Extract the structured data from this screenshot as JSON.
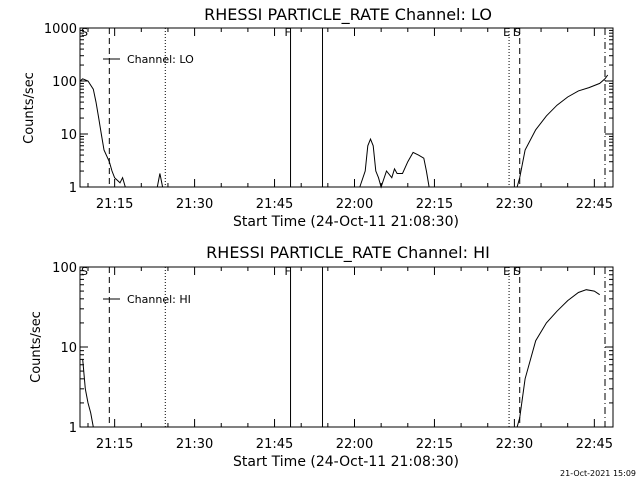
{
  "chart_data": [
    {
      "type": "line",
      "title": "RHESSI PARTICLE_RATE Channel: LO",
      "xlabel": "Start Time (24-Oct-11 21:08:30)",
      "ylabel": "Counts/sec",
      "yscale": "log",
      "ylim": [
        1,
        1000
      ],
      "xlim": [
        "21:08:30",
        "22:48:30"
      ],
      "x_ticks": [
        "21:15",
        "21:30",
        "21:45",
        "22:00",
        "22:15",
        "22:30",
        "22:45"
      ],
      "y_ticks": [
        "1",
        "10",
        "100",
        "1000"
      ],
      "legend": {
        "entries": [
          "Channel: LO"
        ],
        "placement": "top-left"
      },
      "markers": [
        {
          "label": "S",
          "time": "21:08:30",
          "style": "solid"
        },
        {
          "label": "",
          "time": "21:14:00",
          "style": "dashed"
        },
        {
          "label": "",
          "time": "21:24:30",
          "style": "dotted"
        },
        {
          "label": "F",
          "time": "21:48:00",
          "style": "solid"
        },
        {
          "label": "",
          "time": "21:54:00",
          "style": "solid"
        },
        {
          "label": "E",
          "time": "22:29:00",
          "style": "dotted"
        },
        {
          "label": "S",
          "time": "22:31:00",
          "style": "dashed"
        },
        {
          "label": "",
          "time": "22:47:00",
          "style": "dashdot"
        }
      ],
      "series": [
        {
          "segments": [
            [
              [
                "21:08:30",
                100
              ],
              [
                "21:09:00",
                110
              ],
              [
                "21:10:00",
                100
              ],
              [
                "21:11:00",
                70
              ],
              [
                "21:11:30",
                40
              ],
              [
                "21:12:00",
                20
              ],
              [
                "21:12:30",
                10
              ],
              [
                "21:13:00",
                5
              ],
              [
                "21:14:00",
                3
              ],
              [
                "21:14:30",
                2
              ],
              [
                "21:15:00",
                1.5
              ],
              [
                "21:16:00",
                1.2
              ],
              [
                "21:16:30",
                1.5
              ],
              [
                "21:17:00",
                1
              ]
            ],
            [
              [
                "21:23:00",
                1
              ],
              [
                "21:23:30",
                1.8
              ],
              [
                "21:24:00",
                1
              ]
            ],
            [
              [
                "22:01:00",
                1
              ],
              [
                "22:02:00",
                2
              ],
              [
                "22:02:30",
                6
              ],
              [
                "22:03:00",
                8
              ],
              [
                "22:03:30",
                6
              ],
              [
                "22:04:00",
                2
              ],
              [
                "22:04:30",
                1.5
              ],
              [
                "22:05:00",
                1
              ],
              [
                "22:06:00",
                2
              ],
              [
                "22:07:00",
                1.5
              ],
              [
                "22:07:30",
                2.2
              ],
              [
                "22:08:00",
                1.8
              ],
              [
                "22:09:00",
                1.8
              ],
              [
                "22:10:00",
                3
              ],
              [
                "22:11:00",
                4.5
              ],
              [
                "22:12:00",
                4
              ],
              [
                "22:13:00",
                3.5
              ],
              [
                "22:13:30",
                2
              ],
              [
                "22:14:00",
                1
              ]
            ],
            [
              [
                "22:30:30",
                1
              ],
              [
                "22:31:00",
                1.5
              ],
              [
                "22:32:00",
                5
              ],
              [
                "22:34:00",
                12
              ],
              [
                "22:36:00",
                22
              ],
              [
                "22:38:00",
                35
              ],
              [
                "22:40:00",
                50
              ],
              [
                "22:42:00",
                65
              ],
              [
                "22:44:00",
                75
              ],
              [
                "22:46:00",
                90
              ],
              [
                "22:47:00",
                110
              ],
              [
                "22:47:30",
                130
              ]
            ]
          ]
        }
      ]
    },
    {
      "type": "line",
      "title": "RHESSI PARTICLE_RATE Channel: HI",
      "xlabel": "Start Time (24-Oct-11 21:08:30)",
      "ylabel": "Counts/sec",
      "yscale": "log",
      "ylim": [
        1,
        100
      ],
      "xlim": [
        "21:08:30",
        "22:48:30"
      ],
      "x_ticks": [
        "21:15",
        "21:30",
        "21:45",
        "22:00",
        "22:15",
        "22:30",
        "22:45"
      ],
      "y_ticks": [
        "1",
        "10",
        "100"
      ],
      "legend": {
        "entries": [
          "Channel: HI"
        ],
        "placement": "top-left"
      },
      "markers": [
        {
          "label": "S",
          "time": "21:08:30",
          "style": "solid"
        },
        {
          "label": "",
          "time": "21:14:00",
          "style": "dashed"
        },
        {
          "label": "",
          "time": "21:24:30",
          "style": "dotted"
        },
        {
          "label": "F",
          "time": "21:48:00",
          "style": "solid"
        },
        {
          "label": "",
          "time": "21:54:00",
          "style": "solid"
        },
        {
          "label": "E",
          "time": "22:29:00",
          "style": "dotted"
        },
        {
          "label": "S",
          "time": "22:31:00",
          "style": "dashed"
        },
        {
          "label": "",
          "time": "22:47:00",
          "style": "dashdot"
        }
      ],
      "series": [
        {
          "segments": [
            [
              [
                "21:09:00",
                7
              ],
              [
                "21:09:30",
                3
              ],
              [
                "21:10:00",
                2
              ],
              [
                "21:10:30",
                1.5
              ],
              [
                "21:11:00",
                1
              ]
            ],
            [
              [
                "22:30:30",
                1
              ],
              [
                "22:31:00",
                1.3
              ],
              [
                "22:32:00",
                4
              ],
              [
                "22:34:00",
                12
              ],
              [
                "22:36:00",
                20
              ],
              [
                "22:38:00",
                28
              ],
              [
                "22:40:00",
                38
              ],
              [
                "22:42:00",
                48
              ],
              [
                "22:43:30",
                52
              ],
              [
                "22:45:00",
                50
              ],
              [
                "22:46:00",
                45
              ]
            ]
          ]
        }
      ]
    }
  ],
  "footer": {
    "timestamp": "21-Oct-2021 15:09"
  }
}
